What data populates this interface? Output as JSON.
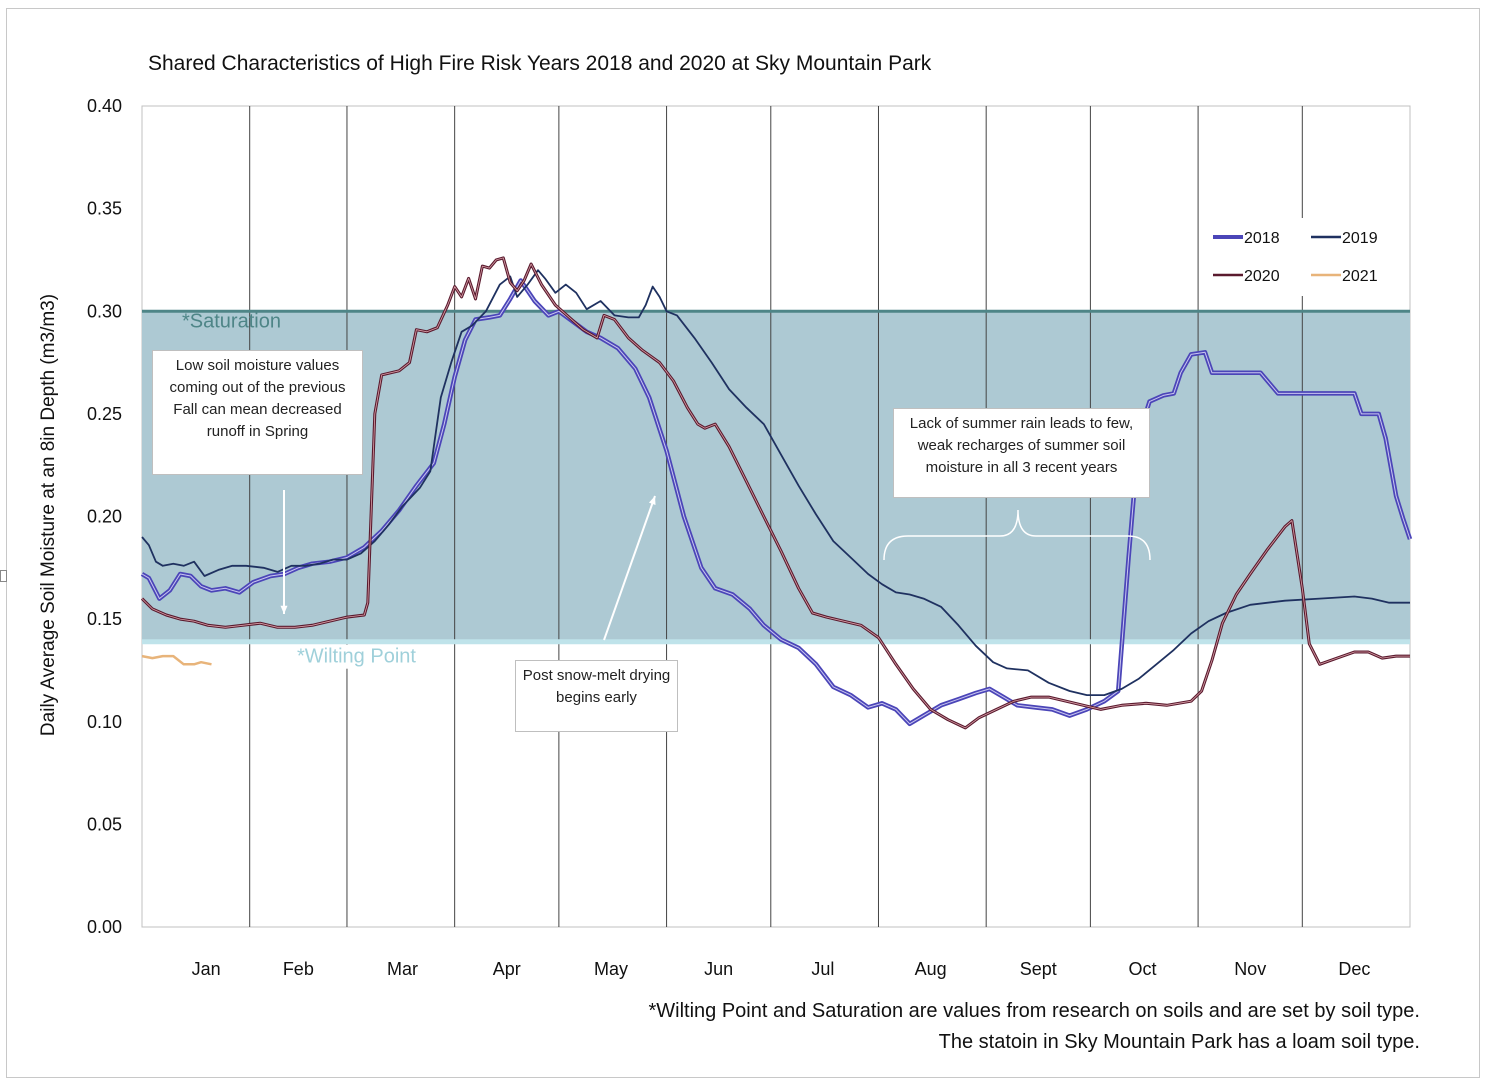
{
  "chart_data": {
    "type": "line",
    "title": "Shared Characteristics of High Fire Risk Years 2018 and 2020 at Sky Mountain Park",
    "ylabel": "Daily Average Soil Moisture  at an 8in Depth (m3/m3)",
    "xlabel": "",
    "ylim": [
      0,
      0.4
    ],
    "xlim": [
      1,
      366
    ],
    "yticks": [
      "0.00",
      "0.05",
      "0.10",
      "0.15",
      "0.20",
      "0.25",
      "0.30",
      "0.35",
      "0.40"
    ],
    "months": [
      "Jan",
      "Feb",
      "Mar",
      "Apr",
      "May",
      "Jun",
      "Jul",
      "Aug",
      "Sept",
      "Oct",
      "Nov",
      "Dec"
    ],
    "grid": "vertical lines at month boundaries",
    "legend_position": "top-right",
    "bands": {
      "saturation": {
        "value": 0.3,
        "label": "*Saturation"
      },
      "wilting_point": {
        "value": 0.139,
        "label": "*Wilting Point"
      }
    },
    "series": [
      {
        "name": "2018",
        "color": "#4b45b8",
        "points": [
          [
            1,
            0.172
          ],
          [
            3,
            0.17
          ],
          [
            6,
            0.16
          ],
          [
            9,
            0.164
          ],
          [
            12,
            0.172
          ],
          [
            15,
            0.171
          ],
          [
            18,
            0.166
          ],
          [
            21,
            0.164
          ],
          [
            25,
            0.165
          ],
          [
            29,
            0.163
          ],
          [
            33,
            0.168
          ],
          [
            38,
            0.171
          ],
          [
            42,
            0.172
          ],
          [
            46,
            0.175
          ],
          [
            50,
            0.177
          ],
          [
            55,
            0.178
          ],
          [
            60,
            0.18
          ],
          [
            65,
            0.185
          ],
          [
            70,
            0.193
          ],
          [
            75,
            0.203
          ],
          [
            80,
            0.215
          ],
          [
            85,
            0.226
          ],
          [
            88,
            0.245
          ],
          [
            91,
            0.268
          ],
          [
            94,
            0.286
          ],
          [
            97,
            0.296
          ],
          [
            101,
            0.297
          ],
          [
            104,
            0.298
          ],
          [
            107,
            0.306
          ],
          [
            110,
            0.315
          ],
          [
            114,
            0.305
          ],
          [
            118,
            0.298
          ],
          [
            121,
            0.3
          ],
          [
            125,
            0.295
          ],
          [
            129,
            0.29
          ],
          [
            133,
            0.287
          ],
          [
            138,
            0.282
          ],
          [
            143,
            0.272
          ],
          [
            147,
            0.258
          ],
          [
            152,
            0.232
          ],
          [
            157,
            0.2
          ],
          [
            162,
            0.175
          ],
          [
            166,
            0.165
          ],
          [
            171,
            0.162
          ],
          [
            176,
            0.155
          ],
          [
            180,
            0.147
          ],
          [
            185,
            0.14
          ],
          [
            190,
            0.136
          ],
          [
            195,
            0.128
          ],
          [
            200,
            0.117
          ],
          [
            205,
            0.113
          ],
          [
            210,
            0.107
          ],
          [
            214,
            0.109
          ],
          [
            218,
            0.106
          ],
          [
            222,
            0.099
          ],
          [
            226,
            0.103
          ],
          [
            231,
            0.108
          ],
          [
            236,
            0.111
          ],
          [
            241,
            0.114
          ],
          [
            245,
            0.116
          ],
          [
            249,
            0.112
          ],
          [
            253,
            0.108
          ],
          [
            258,
            0.107
          ],
          [
            263,
            0.106
          ],
          [
            268,
            0.103
          ],
          [
            273,
            0.106
          ],
          [
            278,
            0.11
          ],
          [
            282,
            0.115
          ],
          [
            285,
            0.18
          ],
          [
            288,
            0.24
          ],
          [
            291,
            0.256
          ],
          [
            295,
            0.259
          ],
          [
            298,
            0.26
          ],
          [
            300,
            0.27
          ],
          [
            303,
            0.279
          ],
          [
            307,
            0.28
          ],
          [
            309,
            0.27
          ],
          [
            313,
            0.27
          ],
          [
            318,
            0.27
          ],
          [
            323,
            0.27
          ],
          [
            328,
            0.26
          ],
          [
            335,
            0.26
          ],
          [
            343,
            0.26
          ],
          [
            350,
            0.26
          ],
          [
            352,
            0.25
          ],
          [
            357,
            0.25
          ],
          [
            359,
            0.238
          ],
          [
            362,
            0.21
          ],
          [
            364,
            0.199
          ],
          [
            366,
            0.189
          ]
        ]
      },
      {
        "name": "2019",
        "color": "#1f3160",
        "points": [
          [
            1,
            0.19
          ],
          [
            3,
            0.186
          ],
          [
            5,
            0.178
          ],
          [
            7,
            0.176
          ],
          [
            10,
            0.177
          ],
          [
            13,
            0.176
          ],
          [
            16,
            0.178
          ],
          [
            19,
            0.171
          ],
          [
            23,
            0.174
          ],
          [
            27,
            0.176
          ],
          [
            31,
            0.176
          ],
          [
            36,
            0.175
          ],
          [
            40,
            0.173
          ],
          [
            44,
            0.176
          ],
          [
            48,
            0.176
          ],
          [
            52,
            0.177
          ],
          [
            56,
            0.179
          ],
          [
            60,
            0.179
          ],
          [
            64,
            0.182
          ],
          [
            68,
            0.188
          ],
          [
            72,
            0.196
          ],
          [
            76,
            0.205
          ],
          [
            81,
            0.214
          ],
          [
            84,
            0.222
          ],
          [
            87,
            0.258
          ],
          [
            90,
            0.275
          ],
          [
            93,
            0.29
          ],
          [
            96,
            0.293
          ],
          [
            100,
            0.3
          ],
          [
            104,
            0.313
          ],
          [
            107,
            0.317
          ],
          [
            109,
            0.307
          ],
          [
            112,
            0.313
          ],
          [
            115,
            0.32
          ],
          [
            117,
            0.316
          ],
          [
            120,
            0.309
          ],
          [
            123,
            0.313
          ],
          [
            126,
            0.309
          ],
          [
            129,
            0.301
          ],
          [
            133,
            0.305
          ],
          [
            137,
            0.298
          ],
          [
            141,
            0.297
          ],
          [
            144,
            0.297
          ],
          [
            146,
            0.303
          ],
          [
            148,
            0.312
          ],
          [
            150,
            0.307
          ],
          [
            152,
            0.3
          ],
          [
            155,
            0.298
          ],
          [
            160,
            0.287
          ],
          [
            165,
            0.275
          ],
          [
            170,
            0.262
          ],
          [
            175,
            0.253
          ],
          [
            180,
            0.245
          ],
          [
            185,
            0.23
          ],
          [
            190,
            0.215
          ],
          [
            195,
            0.201
          ],
          [
            200,
            0.188
          ],
          [
            205,
            0.18
          ],
          [
            210,
            0.172
          ],
          [
            214,
            0.167
          ],
          [
            218,
            0.163
          ],
          [
            222,
            0.162
          ],
          [
            226,
            0.16
          ],
          [
            231,
            0.156
          ],
          [
            236,
            0.147
          ],
          [
            241,
            0.137
          ],
          [
            246,
            0.129
          ],
          [
            250,
            0.126
          ],
          [
            256,
            0.125
          ],
          [
            262,
            0.119
          ],
          [
            268,
            0.115
          ],
          [
            273,
            0.113
          ],
          [
            278,
            0.113
          ],
          [
            283,
            0.116
          ],
          [
            288,
            0.121
          ],
          [
            293,
            0.128
          ],
          [
            298,
            0.135
          ],
          [
            303,
            0.143
          ],
          [
            308,
            0.149
          ],
          [
            313,
            0.153
          ],
          [
            320,
            0.157
          ],
          [
            330,
            0.159
          ],
          [
            340,
            0.16
          ],
          [
            350,
            0.161
          ],
          [
            355,
            0.16
          ],
          [
            360,
            0.158
          ],
          [
            366,
            0.158
          ]
        ]
      },
      {
        "name": "2020",
        "color": "#5a1a2e",
        "points": [
          [
            1,
            0.16
          ],
          [
            4,
            0.155
          ],
          [
            8,
            0.152
          ],
          [
            12,
            0.15
          ],
          [
            16,
            0.149
          ],
          [
            20,
            0.147
          ],
          [
            25,
            0.146
          ],
          [
            30,
            0.147
          ],
          [
            35,
            0.148
          ],
          [
            40,
            0.146
          ],
          [
            45,
            0.146
          ],
          [
            50,
            0.147
          ],
          [
            55,
            0.149
          ],
          [
            60,
            0.151
          ],
          [
            65,
            0.152
          ],
          [
            66,
            0.158
          ],
          [
            68,
            0.25
          ],
          [
            70,
            0.269
          ],
          [
            75,
            0.271
          ],
          [
            78,
            0.275
          ],
          [
            80,
            0.291
          ],
          [
            83,
            0.29
          ],
          [
            86,
            0.292
          ],
          [
            89,
            0.303
          ],
          [
            91,
            0.312
          ],
          [
            93,
            0.307
          ],
          [
            95,
            0.316
          ],
          [
            97,
            0.306
          ],
          [
            99,
            0.322
          ],
          [
            101,
            0.321
          ],
          [
            103,
            0.325
          ],
          [
            105,
            0.326
          ],
          [
            107,
            0.314
          ],
          [
            109,
            0.31
          ],
          [
            111,
            0.315
          ],
          [
            113,
            0.323
          ],
          [
            116,
            0.313
          ],
          [
            120,
            0.303
          ],
          [
            124,
            0.297
          ],
          [
            128,
            0.291
          ],
          [
            132,
            0.287
          ],
          [
            134,
            0.298
          ],
          [
            137,
            0.296
          ],
          [
            141,
            0.287
          ],
          [
            145,
            0.281
          ],
          [
            150,
            0.275
          ],
          [
            154,
            0.266
          ],
          [
            158,
            0.253
          ],
          [
            161,
            0.245
          ],
          [
            163,
            0.243
          ],
          [
            166,
            0.245
          ],
          [
            170,
            0.234
          ],
          [
            175,
            0.217
          ],
          [
            180,
            0.2
          ],
          [
            185,
            0.183
          ],
          [
            190,
            0.165
          ],
          [
            194,
            0.153
          ],
          [
            198,
            0.151
          ],
          [
            203,
            0.149
          ],
          [
            208,
            0.147
          ],
          [
            213,
            0.141
          ],
          [
            218,
            0.128
          ],
          [
            223,
            0.116
          ],
          [
            228,
            0.106
          ],
          [
            233,
            0.101
          ],
          [
            238,
            0.097
          ],
          [
            242,
            0.102
          ],
          [
            247,
            0.106
          ],
          [
            252,
            0.11
          ],
          [
            257,
            0.112
          ],
          [
            262,
            0.112
          ],
          [
            267,
            0.11
          ],
          [
            272,
            0.108
          ],
          [
            277,
            0.106
          ],
          [
            283,
            0.108
          ],
          [
            290,
            0.109
          ],
          [
            296,
            0.108
          ],
          [
            303,
            0.11
          ],
          [
            306,
            0.115
          ],
          [
            309,
            0.13
          ],
          [
            312,
            0.148
          ],
          [
            316,
            0.162
          ],
          [
            320,
            0.172
          ],
          [
            325,
            0.184
          ],
          [
            330,
            0.195
          ],
          [
            332,
            0.198
          ],
          [
            335,
            0.165
          ],
          [
            337,
            0.138
          ],
          [
            340,
            0.128
          ],
          [
            345,
            0.131
          ],
          [
            350,
            0.134
          ],
          [
            354,
            0.134
          ],
          [
            358,
            0.131
          ],
          [
            362,
            0.132
          ],
          [
            366,
            0.132
          ]
        ]
      },
      {
        "name": "2021",
        "color": "#e8b47a",
        "points": [
          [
            1,
            0.132
          ],
          [
            4,
            0.131
          ],
          [
            7,
            0.132
          ],
          [
            10,
            0.132
          ],
          [
            13,
            0.128
          ],
          [
            16,
            0.128
          ],
          [
            18,
            0.129
          ],
          [
            21,
            0.128
          ]
        ]
      }
    ],
    "annotations": [
      {
        "text": "Low soil moisture values coming out of the previous Fall can mean decreased runoff in Spring"
      },
      {
        "text": "Post snow-melt drying begins early"
      },
      {
        "text": "Lack of summer rain leads to few, weak recharges of summer soil moisture in all 3 recent years"
      }
    ]
  },
  "footnote": {
    "line1": "*Wilting Point and Saturation are values from research on soils and are set by soil type.",
    "line2": "The statoin in Sky Mountain Park has a loam soil type."
  }
}
